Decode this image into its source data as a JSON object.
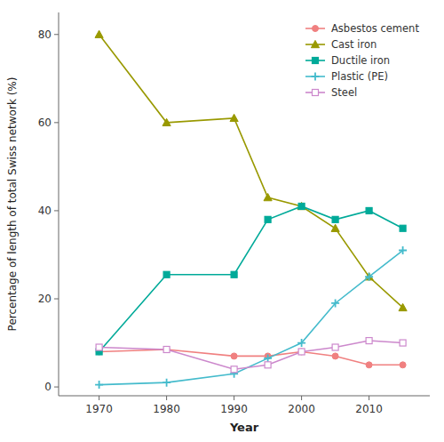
{
  "chart_data": {
    "type": "line",
    "xlabel": "Year",
    "ylabel": "Percentage of length of total Swiss network (%)",
    "x": [
      1970,
      1980,
      1990,
      1995,
      2000,
      2005,
      2010,
      2015
    ],
    "series": [
      {
        "name": "Asbestos cement",
        "color": "#F08080",
        "marker": "circle",
        "values": [
          8,
          8.5,
          7,
          7,
          8,
          7,
          5,
          5
        ]
      },
      {
        "name": "Cast iron",
        "color": "#999900",
        "marker": "triangle",
        "values": [
          80,
          60,
          61,
          43,
          41,
          36,
          25,
          18
        ]
      },
      {
        "name": "Ductile iron",
        "color": "#00AA99",
        "marker": "square",
        "values": [
          8,
          25.5,
          25.5,
          38,
          41,
          38,
          40,
          36
        ]
      },
      {
        "name": "Plastic (PE)",
        "color": "#44BBCC",
        "marker": "plus",
        "values": [
          0.5,
          1,
          3,
          6.5,
          10,
          19,
          25,
          31
        ]
      },
      {
        "name": "Steel",
        "color": "#CC88CC",
        "marker": "square-open",
        "values": [
          9,
          8.5,
          4,
          5,
          8,
          9,
          10.5,
          10
        ]
      }
    ],
    "xlim": [
      1964,
      2019
    ],
    "ylim": [
      -2,
      85
    ],
    "xticks": [
      1970,
      1980,
      1990,
      2000,
      2010
    ],
    "yticks": [
      0,
      20,
      40,
      60,
      80
    ],
    "grid": false,
    "legend": "upper right"
  }
}
